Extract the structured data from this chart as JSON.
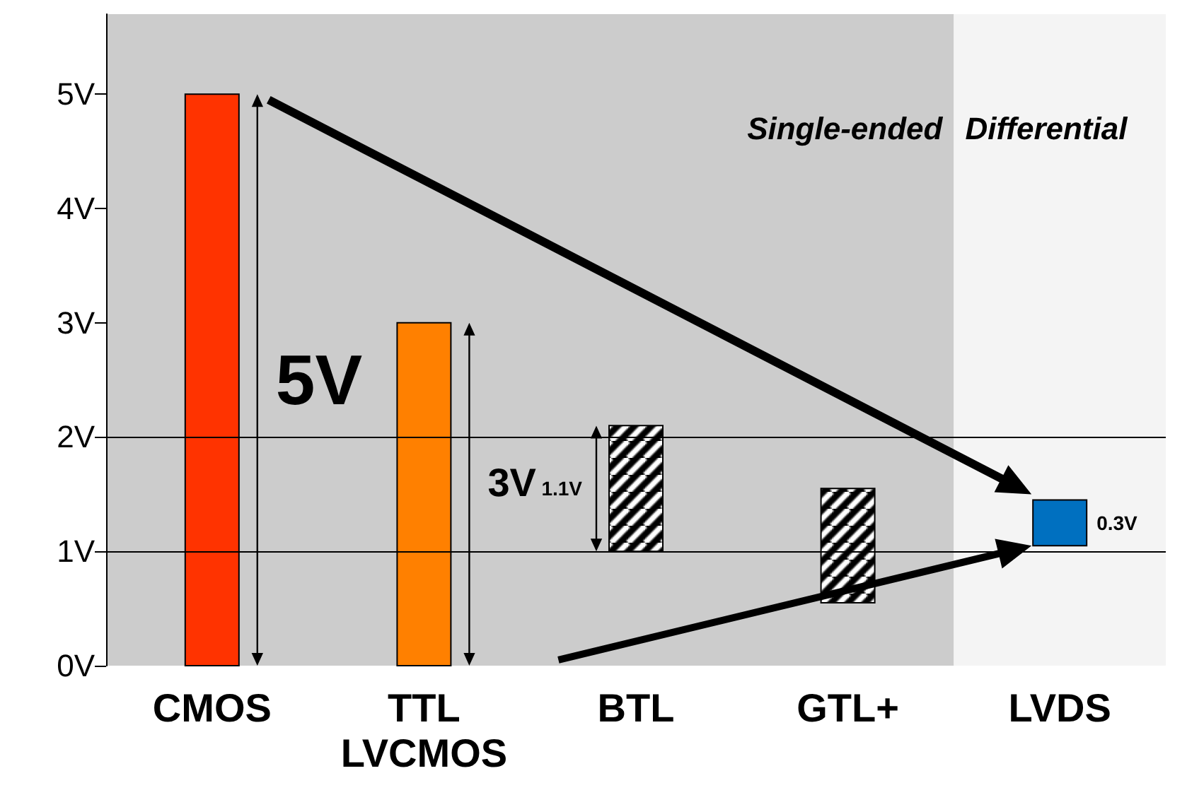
{
  "chart_data": {
    "type": "bar",
    "categories": [
      "CMOS",
      "TTL\nLVCMOS",
      "BTL",
      "GTL+",
      "LVDS"
    ],
    "values": [
      5,
      3,
      1.1,
      1.0,
      0.4
    ],
    "base": [
      0,
      0,
      1.0,
      0.55,
      1.05
    ],
    "colors": [
      "#ff3300",
      "#ff8000",
      "#000000",
      "#000000",
      "#0070c0"
    ],
    "ylim": [
      0,
      5.7
    ],
    "yticks": [
      {
        "value": 0,
        "label": "0V"
      },
      {
        "value": 1,
        "label": "1V"
      },
      {
        "value": 2,
        "label": "2V"
      },
      {
        "value": 3,
        "label": "3V"
      },
      {
        "value": 4,
        "label": "4V"
      },
      {
        "value": 5,
        "label": "5V"
      }
    ],
    "ref_lines": [
      {
        "axis": "y",
        "value": 1,
        "color": "#000000"
      },
      {
        "axis": "y",
        "value": 2,
        "color": "#000000"
      }
    ],
    "annotations": [
      "5V",
      "3V",
      "1.1V",
      "0.3V"
    ],
    "bands": [
      {
        "axis": "x",
        "from": "CMOS",
        "to": "GTL+",
        "label": "Single-ended",
        "color": "#cccccc"
      },
      {
        "axis": "x",
        "from": "LVDS",
        "to": "LVDS",
        "label": "Differential",
        "color": "#f4f4f4"
      }
    ],
    "grid": false
  }
}
